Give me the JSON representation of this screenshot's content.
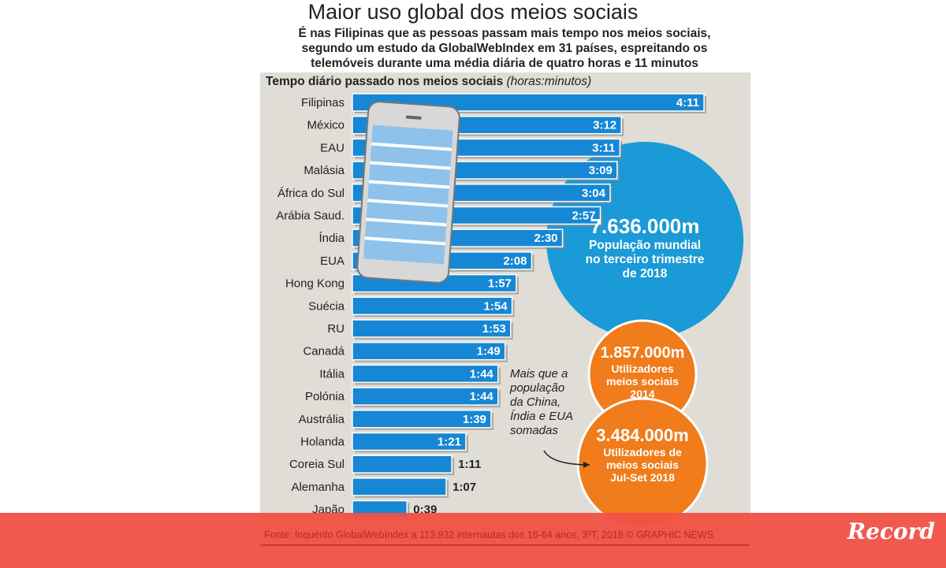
{
  "chart_data": {
    "type": "bar",
    "title": "Maior uso global dos meios sociais",
    "subtitle": [
      "É nas Filipinas que as pessoas passam mais tempo nos meios sociais,",
      "segundo um estudo da GlobalWebIndex em 31 países, espreitando os",
      "telemóveis durante uma média diária de quatro horas e 11 minutos"
    ],
    "ylabel": "Tempo diário passado nos meios sociais",
    "unit": "(horas:minutos)",
    "categories": [
      "Filipinas",
      "México",
      "EAU",
      "Malásia",
      "África do Sul",
      "Arábia Saud.",
      "Índia",
      "EUA",
      "Hong Kong",
      "Suécia",
      "RU",
      "Canadá",
      "Itália",
      "Polónia",
      "Austrália",
      "Holanda",
      "Coreia Sul",
      "Alemanha",
      "Japão"
    ],
    "labels": [
      "4:11",
      "3:12",
      "3:11",
      "3:09",
      "3:04",
      "2:57",
      "2:30",
      "2:08",
      "1:57",
      "1:54",
      "1:53",
      "1:49",
      "1:44",
      "1:44",
      "1:39",
      "1:21",
      "1:11",
      "1:07",
      "0:39"
    ],
    "values": [
      251,
      192,
      191,
      189,
      184,
      177,
      150,
      128,
      117,
      114,
      113,
      109,
      104,
      104,
      99,
      81,
      71,
      67,
      39
    ],
    "xlim": [
      0,
      251
    ]
  },
  "bubbles": [
    {
      "value": "7.636.000m",
      "text": [
        "População mundial",
        "no terceiro trimestre",
        "de 2018"
      ],
      "color": "#1a9ad6"
    },
    {
      "value": "1.857.000m",
      "text": [
        "Utilizadores",
        "meios sociais",
        "2014"
      ],
      "color": "#f07c1c"
    },
    {
      "value": "3.484.000m",
      "text": [
        "Utilizadores de",
        "meios sociais",
        "Jul-Set 2018"
      ],
      "color": "#f07c1c"
    }
  ],
  "note": [
    "Mais que a",
    "população",
    "da China,",
    "Índia e EUA",
    "somadas"
  ],
  "footer": "Fonte: Inquérito GlobalWebIndex a 113.932 internautas dos 16-64 anos, 3ºT, 2018  © GRAPHIC NEWS",
  "logo": "Record",
  "colors": {
    "bar": "#1587d4",
    "banner": "#f05044"
  }
}
